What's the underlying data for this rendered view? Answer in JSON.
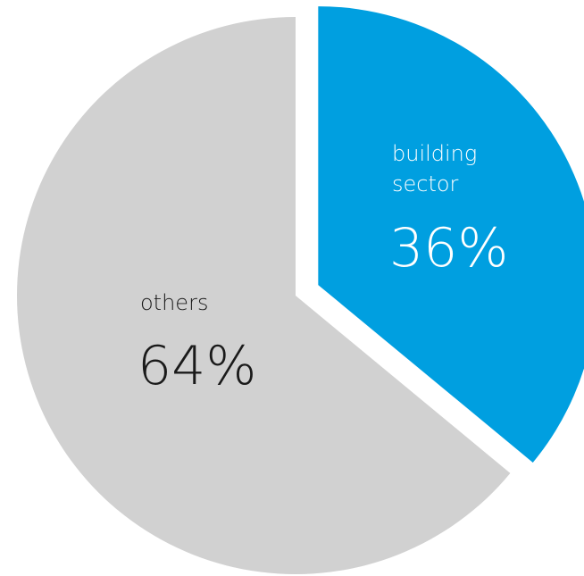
{
  "chart_data": {
    "type": "pie",
    "title": "",
    "slices": [
      {
        "label_lines": [
          "building",
          "sector"
        ],
        "value": 36,
        "value_label": "36%",
        "color": "#009FE0",
        "text_color": "#ffffff",
        "exploded": true
      },
      {
        "label_lines": [
          "others"
        ],
        "value": 64,
        "value_label": "64%",
        "color": "#D1D1D1",
        "text_color": "#1a1a1a",
        "exploded": false
      }
    ],
    "start_angle_deg": 0,
    "direction": "clockwise",
    "legend": "none"
  }
}
